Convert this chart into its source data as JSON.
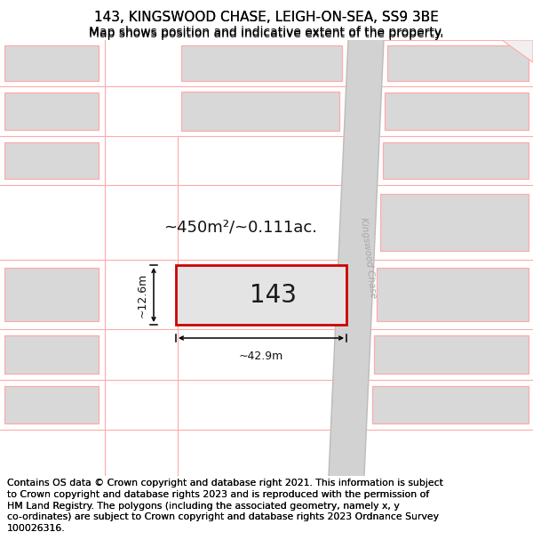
{
  "title": "143, KINGSWOOD CHASE, LEIGH-ON-SEA, SS9 3BE",
  "subtitle": "Map shows position and indicative extent of the property.",
  "footer_line1": "Contains OS data © Crown copyright and database right 2021. This information is subject",
  "footer_line2": "to Crown copyright and database rights 2023 and is reproduced with the permission of",
  "footer_line3": "HM Land Registry. The polygons (including the associated geometry, namely x, y",
  "footer_line4": "co-ordinates) are subject to Crown copyright and database rights 2023 Ordnance Survey",
  "footer_line5": "100026316.",
  "bg_color": "#f0f0f0",
  "road_color": "#d0d0d0",
  "plot_border": "#ff9999",
  "highlight_border": "#cc0000",
  "highlight_fill": "#e8e8e8",
  "bldg_fill": "#d8d8d8",
  "street_label": "Kingswood Chase",
  "area_label": "~450m²/~0.111ac.",
  "width_label": "~42.9m",
  "height_label": "~12.6m",
  "number_label": "143",
  "title_fontsize": 11,
  "subtitle_fontsize": 10,
  "footer_fontsize": 8
}
